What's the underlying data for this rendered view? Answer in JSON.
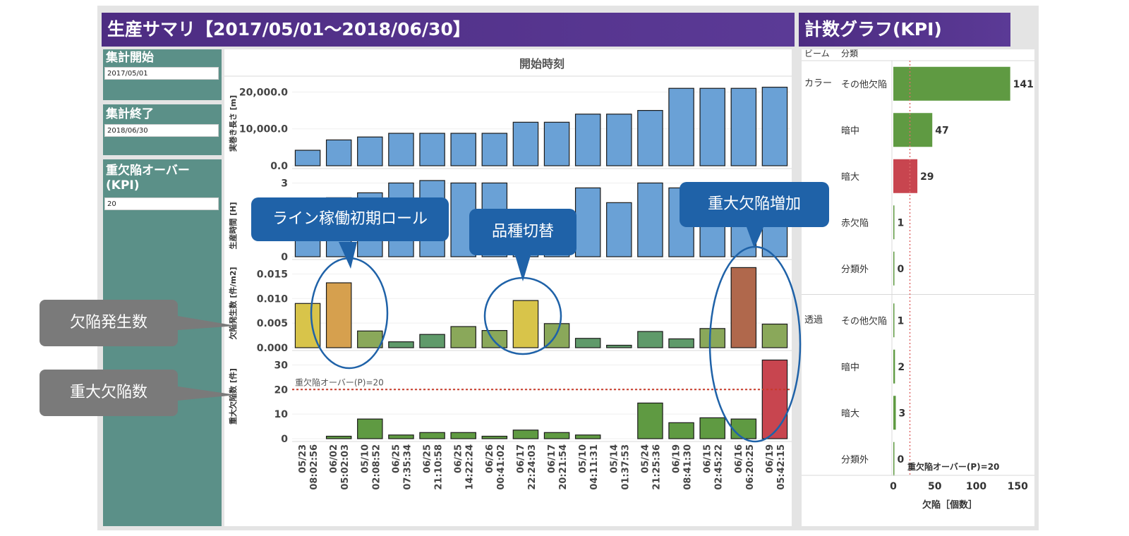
{
  "header": {
    "title": "生産サマリ【2017/05/01～2018/06/30】",
    "kpi_title": "計数グラフ(KPI)"
  },
  "filters": {
    "start_label": "集計開始",
    "start_value": "2017/05/01",
    "end_label": "集計終了",
    "end_value": "2018/06/30",
    "kpi_label": "重欠陥オーバー(KPI)",
    "kpi_value": "20"
  },
  "colors": {
    "bar_blue": "#6aa1d6",
    "bar_green": "#5f9a42",
    "bar_red": "#c8454f",
    "header": "#4d2c82",
    "panel": "#5b9088",
    "callout": "#1f62a8"
  },
  "callouts": {
    "line_start": "ライン稼働初期ロール",
    "type_switch": "品種切替",
    "defect_increase": "重大欠陥増加",
    "defect_rate": "欠陥発生数",
    "major_defects": "重大欠陥数"
  },
  "chart_data": [
    {
      "type": "bar",
      "title": "開始時刻",
      "categories": [
        "05/23 08:02:56",
        "06/02 05:02:03",
        "05/10 02:08:52",
        "06/25 07:35:34",
        "06/25 21:10:58",
        "06/25 14:22:24",
        "06/26 00:41:02",
        "06/17 22:24:03",
        "06/17 20:21:54",
        "05/10 04:11:31",
        "05/14 01:37:53",
        "05/24 21:25:36",
        "06/19 08:41:30",
        "06/15 02:45:22",
        "06/16 06:20:25",
        "06/19 05:42:15"
      ],
      "category_dates": [
        "05/23",
        "06/02",
        "05/10",
        "06/25",
        "06/25",
        "06/25",
        "06/26",
        "06/17",
        "06/17",
        "05/10",
        "05/14",
        "05/24",
        "06/19",
        "06/15",
        "06/16",
        "06/19"
      ],
      "category_times": [
        "08:02:56",
        "05:02:03",
        "02:08:52",
        "07:35:34",
        "21:10:58",
        "14:22:24",
        "00:41:02",
        "22:24:03",
        "20:21:54",
        "04:11:31",
        "01:37:53",
        "21:25:36",
        "08:41:30",
        "02:45:22",
        "06:20:25",
        "05:42:15"
      ],
      "panels": [
        {
          "ylabel": "実巻き長さ [m]",
          "ylim": [
            0,
            22000
          ],
          "ticks": [
            "20,000.0",
            "10,000.0",
            "0.0"
          ],
          "tick_values": [
            20000,
            10000,
            0
          ],
          "values": [
            4200,
            7000,
            7800,
            8800,
            8800,
            8800,
            8800,
            11800,
            11800,
            14000,
            14000,
            15000,
            21000,
            21000,
            21000,
            21300
          ]
        },
        {
          "ylabel": "生産時間 [H]",
          "ylim": [
            0,
            3.3
          ],
          "ticks": [
            "3",
            "0"
          ],
          "tick_values": [
            3,
            0
          ],
          "values": [
            2.0,
            2.4,
            2.6,
            3.0,
            3.1,
            3.0,
            3.0,
            1.9,
            1.9,
            2.8,
            2.2,
            3.0,
            2.8,
            2.8,
            2.9,
            2.8
          ]
        },
        {
          "ylabel": "欠陥発生数 [件/m2]",
          "ylim": [
            0,
            0.0165
          ],
          "ticks": [
            "0.015",
            "0.010",
            "0.005",
            "0.000"
          ],
          "tick_values": [
            0.015,
            0.01,
            0.005,
            0.0
          ],
          "values": [
            0.009,
            0.0132,
            0.0034,
            0.0012,
            0.0027,
            0.0043,
            0.0035,
            0.0096,
            0.0049,
            0.0019,
            0.0005,
            0.0033,
            0.0018,
            0.0039,
            0.0163,
            0.0048
          ]
        },
        {
          "ylabel": "重大欠陥数 [件]",
          "ylim": [
            0,
            33
          ],
          "ticks": [
            "30",
            "20",
            "10",
            "0"
          ],
          "tick_values": [
            30,
            20,
            10,
            0
          ],
          "reference_line": {
            "label": "重欠陥オーバー(P)=20",
            "value": 20
          },
          "values": [
            0,
            1,
            8,
            1.5,
            2.5,
            2.5,
            1,
            3.5,
            2.5,
            1.5,
            0,
            14.5,
            6.5,
            8.5,
            8,
            32
          ]
        }
      ]
    },
    {
      "type": "bar",
      "orientation": "horizontal",
      "header_left": "ビーム",
      "header_right": "分類",
      "groups": [
        {
          "name": "カラー",
          "items": [
            {
              "label": "その他欠陥",
              "value": 141
            },
            {
              "label": "暗中",
              "value": 47
            },
            {
              "label": "暗大",
              "value": 29
            },
            {
              "label": "赤欠陥",
              "value": 1
            },
            {
              "label": "分類外",
              "value": 0
            }
          ]
        },
        {
          "name": "透過",
          "items": [
            {
              "label": "その他欠陥",
              "value": 1
            },
            {
              "label": "暗中",
              "value": 2
            },
            {
              "label": "暗大",
              "value": 3
            },
            {
              "label": "分類外",
              "value": 0
            }
          ]
        }
      ],
      "xlabel": "欠陥［個数］",
      "xlim": [
        0,
        160
      ],
      "ticks": [
        "0",
        "50",
        "100",
        "150"
      ],
      "tick_values": [
        0,
        50,
        100,
        150
      ],
      "reference_line": {
        "label": "重欠陥オーバー(P)=20",
        "value": 20
      }
    }
  ]
}
